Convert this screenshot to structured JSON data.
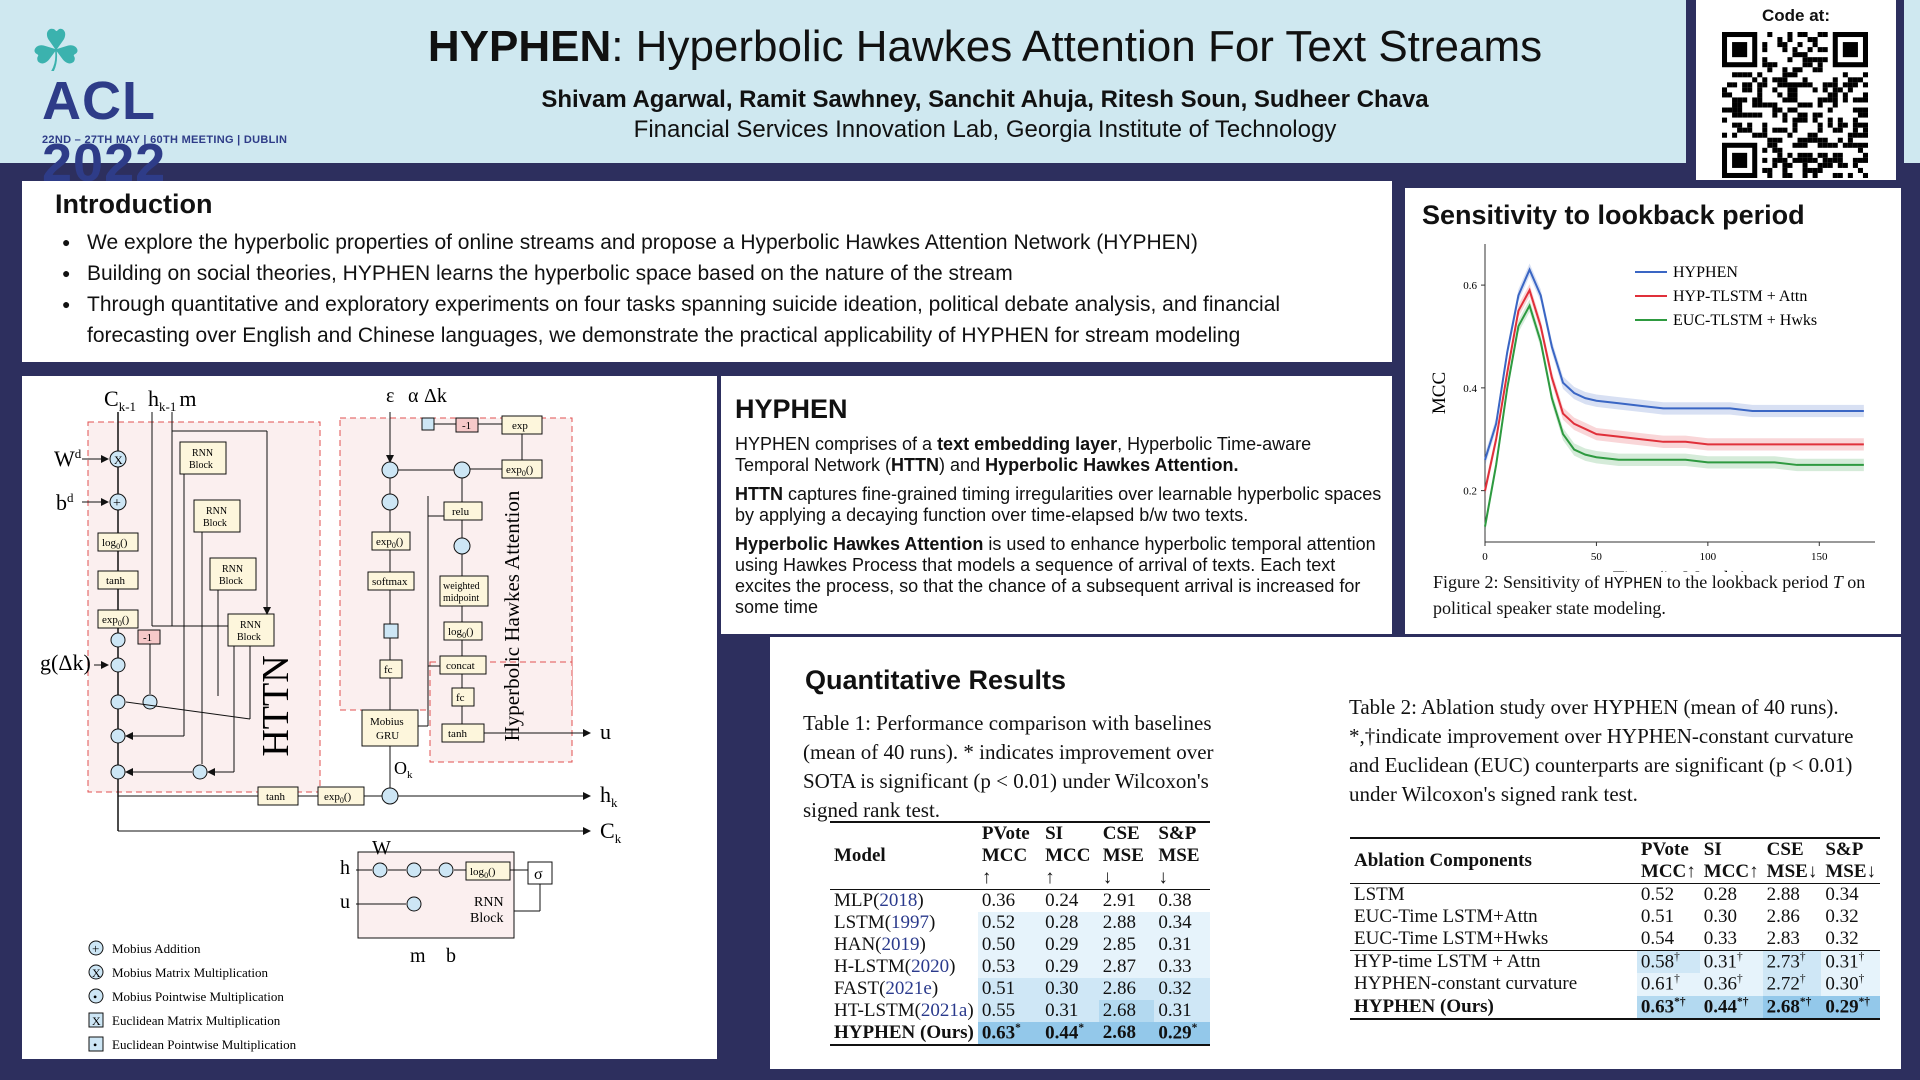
{
  "header": {
    "logo": {
      "conf": "ACL 2022",
      "sub": "22ND – 27TH MAY | 60TH MEETING | DUBLIN"
    },
    "title_bold": "HYPHEN",
    "title_rest": ": Hyperbolic Hawkes Attention For Text Streams",
    "authors": "Shivam Agarwal, Ramit Sawhney, Sanchit Ahuja, Ritesh Soun, Sudheer Chava",
    "affiliation": "Financial Services Innovation Lab, Georgia Institute of Technology",
    "code_label": "Code at:"
  },
  "intro": {
    "heading": "Introduction",
    "bullets": [
      "We explore the hyperbolic properties of online streams and propose a Hyperbolic Hawkes Attention Network (HYPHEN)",
      "Building on social theories, HYPHEN learns the hyperbolic space based on the nature of the stream",
      "Through quantitative and exploratory experiments on four tasks spanning suicide ideation, political debate analysis, and financial forecasting over English and Chinese languages, we demonstrate the practical applicability of HYPHEN for stream modeling"
    ]
  },
  "hyphen": {
    "heading": "HYPHEN",
    "p1_a": "HYPHEN comprises of a ",
    "p1_b": "text embedding layer",
    "p1_c": ", Hyperbolic Time-aware Temporal Network (",
    "p1_d": "HTTN",
    "p1_e": ") and ",
    "p1_f": "Hyperbolic Hawkes Attention.",
    "p2_a": "HTTN",
    "p2_b": " captures fine-grained timing irregularities over learnable hyperbolic spaces by applying a decaying function over time-elapsed b/w two texts.",
    "p3_a": "Hyperbolic Hawkes Attention",
    "p3_b": " is used to enhance hyperbolic temporal attention using Hawkes Process that models a sequence of arrival of texts. Each text excites the process, so that the chance of a subsequent arrival is increased for some time"
  },
  "diagram": {
    "httn_label": "HTTN",
    "hha_label": "Hyperbolic Hawkes Attention",
    "inputs": {
      "c": "C",
      "c_sub": "k-1",
      "h": "h",
      "h_sub": "k-1",
      "m": "m",
      "wd": "W",
      "wd_sup": "d",
      "bd": "b",
      "bd_sup": "d",
      "g": "g(Δk)",
      "eps": "ε",
      "alpha": "α",
      "dk": "Δk"
    },
    "outputs": {
      "u": "u",
      "hk": "h",
      "hk_sub": "k",
      "ck": "C",
      "ck_sub": "k",
      "ok": "O",
      "ok_sub": "k"
    },
    "blocks": {
      "rnn": "RNN",
      "block": "Block",
      "log0": "log",
      "tanh": "tanh",
      "exp0": "exp",
      "minus1": "-1",
      "exp": "exp",
      "relu": "relu",
      "softmax": "softmax",
      "weighted": "weighted",
      "midpoint": "midpoint",
      "concat": "concat",
      "fc": "fc",
      "mobius": "Mobius",
      "gru": "GRU",
      "sigma": "σ",
      "zero": "0",
      "paren": "()"
    },
    "rnn_detail": {
      "h": "h",
      "u": "u",
      "w": "W",
      "m": "m",
      "b": "b"
    },
    "legend": [
      {
        "sym": "+",
        "label": "Mobius Addition"
      },
      {
        "sym": "X",
        "label": "Mobius Matrix Multiplication"
      },
      {
        "sym": "•",
        "label": "Mobius Pointwise Multiplication"
      },
      {
        "sym": "X",
        "label": "Euclidean Matrix Multiplication"
      },
      {
        "sym": "•",
        "label": "Euclidean Pointwise Multiplication"
      }
    ]
  },
  "sensitivity": {
    "heading": "Sensitivity to lookback period",
    "caption_a": "Figure 2: Sensitivity of ",
    "caption_b": "HYPHEN",
    "caption_c": " to the lookback period ",
    "caption_d": "T",
    "caption_e": " on political speaker state modeling.",
    "chart_data": {
      "type": "line",
      "xlabel": "Time (in Months)",
      "ylabel": "MCC",
      "xlim": [
        0,
        175
      ],
      "ylim": [
        0.1,
        0.68
      ],
      "xticks": [
        0,
        50,
        100,
        150
      ],
      "yticks": [
        0.2,
        0.4,
        0.6
      ],
      "legend_position": "top-right",
      "series": [
        {
          "name": "HYPHEN",
          "color": "#3a66c4",
          "x": [
            0,
            5,
            10,
            15,
            20,
            25,
            30,
            35,
            40,
            45,
            50,
            60,
            70,
            80,
            90,
            100,
            110,
            120,
            130,
            140,
            150,
            160,
            170
          ],
          "y": [
            0.26,
            0.33,
            0.47,
            0.58,
            0.63,
            0.58,
            0.48,
            0.41,
            0.39,
            0.38,
            0.375,
            0.37,
            0.365,
            0.36,
            0.36,
            0.36,
            0.36,
            0.355,
            0.355,
            0.355,
            0.355,
            0.355,
            0.355
          ]
        },
        {
          "name": "HYP-TLSTM + Attn",
          "color": "#e0303a",
          "x": [
            0,
            5,
            10,
            15,
            20,
            25,
            30,
            35,
            40,
            45,
            50,
            60,
            70,
            80,
            90,
            100,
            110,
            120,
            130,
            140,
            150,
            160,
            170
          ],
          "y": [
            0.2,
            0.3,
            0.43,
            0.55,
            0.59,
            0.52,
            0.42,
            0.35,
            0.33,
            0.32,
            0.31,
            0.305,
            0.3,
            0.295,
            0.295,
            0.29,
            0.29,
            0.29,
            0.29,
            0.29,
            0.29,
            0.29,
            0.29
          ]
        },
        {
          "name": "EUC-TLSTM + Hwks",
          "color": "#2e9a40",
          "x": [
            0,
            5,
            10,
            15,
            20,
            25,
            30,
            35,
            40,
            45,
            50,
            60,
            70,
            80,
            90,
            100,
            110,
            120,
            130,
            140,
            150,
            160,
            170
          ],
          "y": [
            0.13,
            0.25,
            0.4,
            0.52,
            0.56,
            0.49,
            0.38,
            0.31,
            0.28,
            0.27,
            0.265,
            0.26,
            0.26,
            0.26,
            0.26,
            0.255,
            0.255,
            0.255,
            0.255,
            0.25,
            0.25,
            0.25,
            0.25
          ]
        }
      ]
    }
  },
  "quant": {
    "heading": "Quantitative Results",
    "table1_caption": "Table 1: Performance comparison with baselines (mean of 40 runs). * indicates improvement over SOTA is significant (p < 0.01) under Wilcoxon's signed rank test.",
    "table1": {
      "headers": [
        "Model",
        "PVote MCC ↑",
        "SI MCC ↑",
        "CSE MSE ↓",
        "S&P MSE ↓"
      ],
      "rows": [
        {
          "model": "MLP",
          "cite": "2018",
          "v": [
            "0.36",
            "0.24",
            "2.91",
            "0.38"
          ]
        },
        {
          "model": "LSTM",
          "cite": "1997",
          "v": [
            "0.52",
            "0.28",
            "2.88",
            "0.34"
          ]
        },
        {
          "model": "HAN",
          "cite": "2019",
          "v": [
            "0.50",
            "0.29",
            "2.85",
            "0.31"
          ]
        },
        {
          "model": "H-LSTM",
          "cite": "2020",
          "v": [
            "0.53",
            "0.29",
            "2.87",
            "0.33"
          ]
        },
        {
          "model": "FAST",
          "cite": "2021e",
          "v": [
            "0.51",
            "0.30",
            "2.86",
            "0.32"
          ]
        },
        {
          "model": "HT-LSTM",
          "cite": "2021a",
          "v": [
            "0.55",
            "0.31",
            "2.68",
            "0.31"
          ]
        },
        {
          "model": "HYPHEN (Ours)",
          "cite": "",
          "v": [
            "0.63*",
            "0.44*",
            "2.68",
            "0.29*"
          ]
        }
      ]
    },
    "table2_caption": "Table 2: Ablation study over HYPHEN (mean of 40 runs). *,†indicate improvement over HYPHEN-constant curvature and Euclidean (EUC) counterparts are significant (p < 0.01) under Wilcoxon's signed rank test.",
    "table2": {
      "headers": [
        "Ablation Components",
        "PVote MCC↑",
        "SI MCC↑",
        "CSE MSE↓",
        "S&P MSE↓"
      ],
      "rows": [
        {
          "name": "LSTM",
          "v": [
            "0.52",
            "0.28",
            "2.88",
            "0.34"
          ]
        },
        {
          "name": "EUC-Time LSTM+Attn",
          "v": [
            "0.51",
            "0.30",
            "2.86",
            "0.32"
          ]
        },
        {
          "name": "EUC-Time LSTM+Hwks",
          "v": [
            "0.54",
            "0.33",
            "2.83",
            "0.32"
          ]
        },
        {
          "name": "HYP-time LSTM + Attn",
          "v": [
            "0.58†",
            "0.31†",
            "2.73†",
            "0.31†"
          ]
        },
        {
          "name": "HYPHEN-constant curvature",
          "v": [
            "0.61†",
            "0.36†",
            "2.72†",
            "0.30†"
          ]
        },
        {
          "name": "HYPHEN (Ours)",
          "v": [
            "0.63*†",
            "0.44*†",
            "2.68*†",
            "0.29*†"
          ]
        }
      ]
    }
  }
}
